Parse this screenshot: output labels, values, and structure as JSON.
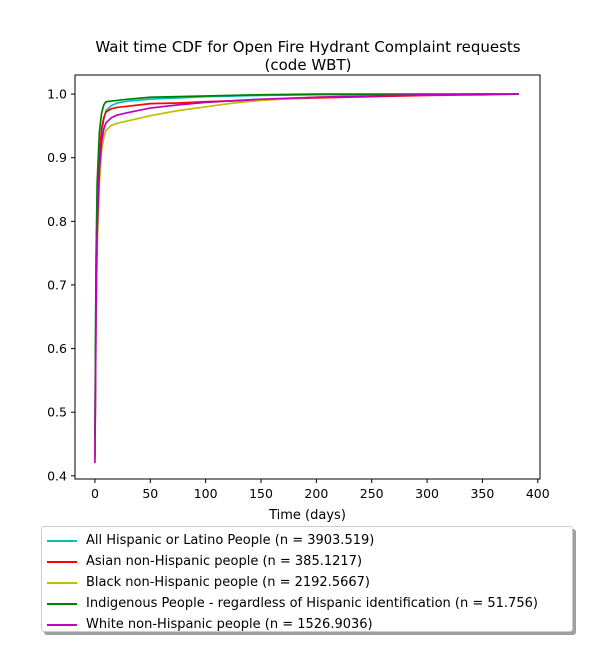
{
  "chart_data": {
    "type": "line",
    "title": [
      "Wait time CDF for Open Fire Hydrant Complaint  requests",
      "(code WBT)"
    ],
    "xlabel": "Time (days)",
    "ylabel": "",
    "xlim": [
      -18,
      402
    ],
    "ylim": [
      0.395,
      1.03
    ],
    "xticks": [
      0,
      50,
      100,
      150,
      200,
      250,
      300,
      350,
      400
    ],
    "yticks": [
      0.4,
      0.5,
      0.6,
      0.7,
      0.8,
      0.9,
      1.0
    ],
    "xtick_labels": [
      "0",
      "50",
      "100",
      "150",
      "200",
      "250",
      "300",
      "350",
      "400"
    ],
    "ytick_labels": [
      "0.4",
      "0.5",
      "0.6",
      "0.7",
      "0.8",
      "0.9",
      "1.0"
    ],
    "grid": false,
    "legend_position": "below",
    "series": [
      {
        "name": "All Hispanic or Latino People (n = 3903.519)",
        "color": "#00bfbf",
        "x": [
          0,
          1,
          2,
          4,
          6,
          8,
          10,
          15,
          20,
          30,
          50,
          75,
          100,
          150,
          200,
          250,
          300,
          350,
          383
        ],
        "y": [
          0.45,
          0.72,
          0.82,
          0.9,
          0.94,
          0.96,
          0.974,
          0.982,
          0.986,
          0.989,
          0.992,
          0.994,
          0.996,
          0.998,
          0.999,
          0.9995,
          0.9998,
          1.0,
          1.0
        ]
      },
      {
        "name": "Asian non-Hispanic people (n = 385.1217)",
        "color": "#ff0000",
        "x": [
          0,
          1,
          2,
          4,
          6,
          8,
          10,
          15,
          20,
          30,
          50,
          75,
          100,
          150,
          200,
          250,
          300,
          350,
          383
        ],
        "y": [
          0.43,
          0.68,
          0.8,
          0.9,
          0.945,
          0.963,
          0.972,
          0.977,
          0.979,
          0.981,
          0.985,
          0.986,
          0.988,
          0.991,
          0.994,
          0.996,
          0.998,
          0.999,
          1.0
        ]
      },
      {
        "name": "Black non-Hispanic people (n = 2192.5667)",
        "color": "#bfbf00",
        "x": [
          0,
          1,
          2,
          4,
          6,
          8,
          10,
          15,
          20,
          30,
          50,
          75,
          100,
          125,
          150,
          200,
          250,
          300,
          350,
          383
        ],
        "y": [
          0.43,
          0.65,
          0.76,
          0.86,
          0.91,
          0.932,
          0.943,
          0.951,
          0.954,
          0.958,
          0.966,
          0.974,
          0.98,
          0.986,
          0.99,
          0.995,
          0.998,
          0.999,
          1.0,
          1.0
        ]
      },
      {
        "name": "Indigenous People - regardless of Hispanic identification (n = 51.756)",
        "color": "#008000",
        "x": [
          0,
          1,
          2,
          4,
          6,
          8,
          10,
          15,
          20,
          30,
          50,
          100,
          150,
          200,
          250,
          300,
          350,
          383
        ],
        "y": [
          0.46,
          0.74,
          0.86,
          0.94,
          0.97,
          0.983,
          0.988,
          0.989,
          0.99,
          0.992,
          0.995,
          0.997,
          0.999,
          1.0,
          1.0,
          1.0,
          1.0,
          1.0
        ]
      },
      {
        "name": "White non-Hispanic people (n = 1526.9036)",
        "color": "#bf00bf",
        "x": [
          0,
          1,
          2,
          4,
          6,
          8,
          10,
          15,
          20,
          30,
          50,
          75,
          100,
          150,
          200,
          250,
          300,
          350,
          383
        ],
        "y": [
          0.42,
          0.66,
          0.78,
          0.88,
          0.925,
          0.945,
          0.955,
          0.963,
          0.967,
          0.971,
          0.978,
          0.983,
          0.987,
          0.992,
          0.995,
          0.997,
          0.999,
          1.0,
          1.0
        ]
      }
    ]
  }
}
